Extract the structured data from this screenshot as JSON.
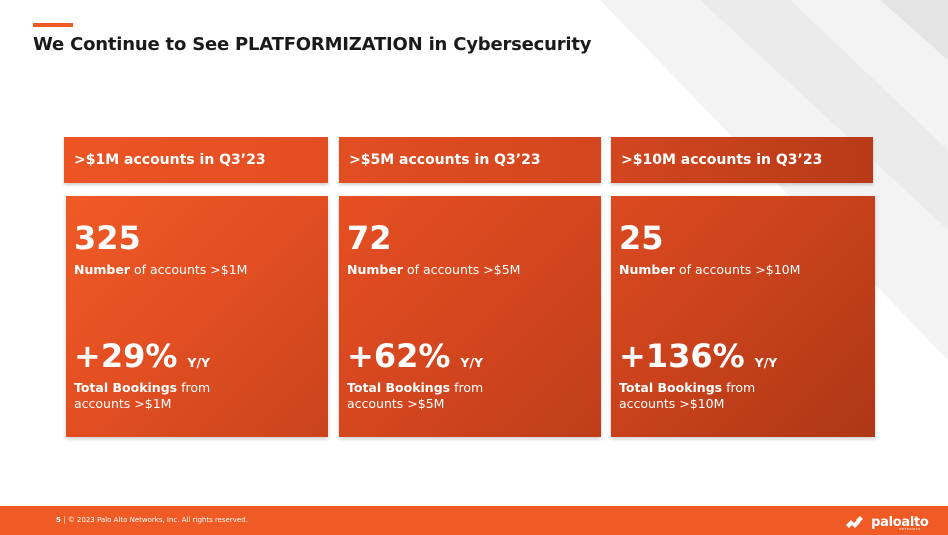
{
  "title": "We Continue to See PLATFORMIZATION in Cybersecurity",
  "cards": [
    {
      "header": ">$1M accounts in Q3’23",
      "big_number": "325",
      "number_bold": "Number",
      "number_rest": "of accounts >$1M",
      "growth": "+29%",
      "growth_unit": "Y/Y",
      "bookings_bold": "Total Bookings",
      "bookings_rest_1": "from",
      "bookings_rest_2": "accounts >$1M"
    },
    {
      "header": ">$5M accounts in Q3’23",
      "big_number": "72",
      "number_bold": "Number",
      "number_rest": "of accounts >$5M",
      "growth": "+62%",
      "growth_unit": "Y/Y",
      "bookings_bold": "Total Bookings",
      "bookings_rest_1": "from",
      "bookings_rest_2": "accounts >$5M"
    },
    {
      "header": ">$10M accounts in Q3’23",
      "big_number": "25",
      "number_bold": "Number",
      "number_rest": "of accounts >$10M",
      "growth": "+136%",
      "growth_unit": "Y/Y",
      "bookings_bold": "Total Bookings",
      "bookings_rest_1": "from",
      "bookings_rest_2": "accounts >$10M"
    }
  ],
  "footer": {
    "page_number": "5",
    "separator": "|",
    "copyright": "© 2023 Palo Alto Networks, Inc. All rights reserved.",
    "logo_text": "paloalto",
    "logo_subtext": "NETWORKS"
  },
  "colors": {
    "brand_orange": "#f05a24",
    "card_dark": "#c2401a",
    "card_light": "#ee5525"
  }
}
